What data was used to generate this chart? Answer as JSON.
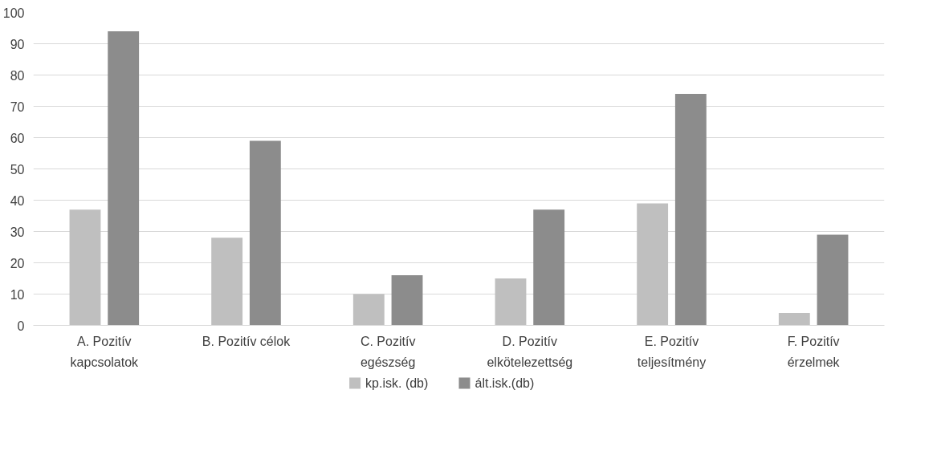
{
  "chart_data": {
    "type": "bar",
    "categories": [
      "A. Pozitív\nkapcsolatok",
      "B. Pozitív célok",
      "C. Pozitív\negészség",
      "D. Pozitív\nelkötelezettség",
      "E. Pozitív\nteljesítmény",
      "F. Pozitív\nérzelmek"
    ],
    "series": [
      {
        "name": "kp.isk. (db)",
        "color": "#bfbfbf",
        "values": [
          37,
          28,
          10,
          15,
          39,
          4
        ]
      },
      {
        "name": "ált.isk.(db)",
        "color": "#8c8c8c",
        "values": [
          94,
          59,
          16,
          37,
          74,
          29
        ]
      }
    ],
    "ylim": [
      0,
      100
    ],
    "yticks": [
      0,
      10,
      20,
      30,
      40,
      50,
      60,
      70,
      80,
      90,
      100
    ],
    "grid": "y",
    "legend": "bottom"
  }
}
